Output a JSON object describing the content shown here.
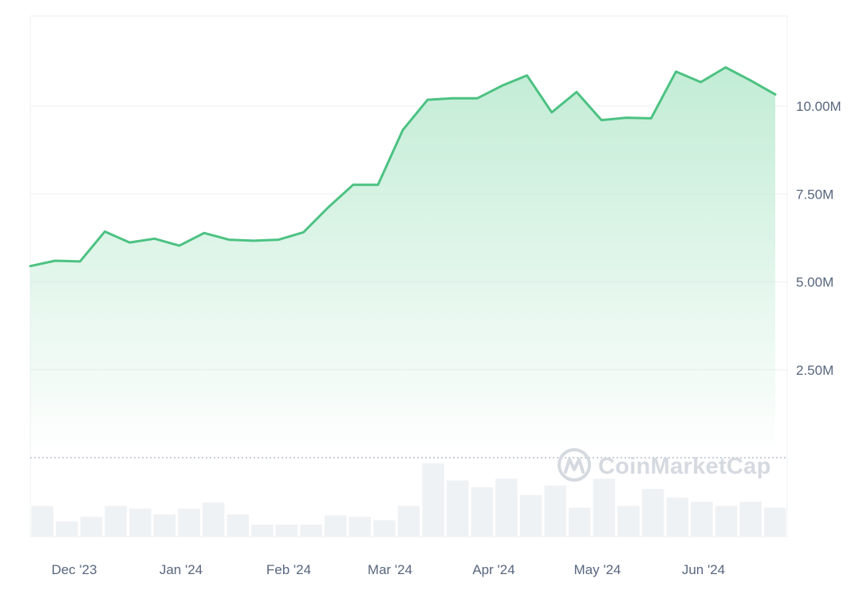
{
  "watermark": "CoinMarketCap",
  "colors": {
    "line": "#4cc282",
    "area_top": "#c2ecd5",
    "volume_bar": "#eff2f5",
    "gridline": "#eef0f3",
    "axis_text": "#58667e",
    "baseline": "#a6b0c3"
  },
  "chart_data": {
    "type": "area",
    "title": "",
    "xlabel": "",
    "ylabel": "",
    "ylim": [
      0,
      12.6
    ],
    "yunit": "M",
    "y_ticks": [
      {
        "value": 2.5,
        "label": "2.50M"
      },
      {
        "value": 5.0,
        "label": "5.00M"
      },
      {
        "value": 7.5,
        "label": "7.50M"
      },
      {
        "value": 10.0,
        "label": "10.00M"
      }
    ],
    "x_ticks": [
      "Dec '23",
      "Jan '24",
      "Feb '24",
      "Mar '24",
      "Apr '24",
      "May '24",
      "Jun '24"
    ],
    "grid": true,
    "legend": "none",
    "series": [
      {
        "values": [
          5.45,
          5.6,
          5.58,
          6.43,
          6.12,
          6.23,
          6.03,
          6.39,
          6.2,
          6.17,
          6.2,
          6.41,
          7.12,
          7.76,
          7.76,
          9.32,
          10.18,
          10.22,
          10.22,
          10.58,
          10.87,
          9.82,
          10.4,
          9.6,
          9.67,
          9.65,
          10.98,
          10.68,
          11.1,
          10.73,
          10.33
        ]
      }
    ],
    "volume": {
      "values": [
        0.9,
        0.45,
        0.58,
        0.9,
        0.82,
        0.65,
        0.82,
        1.0,
        0.65,
        0.35,
        0.35,
        0.35,
        0.62,
        0.58,
        0.48,
        0.9,
        2.15,
        1.65,
        1.45,
        1.7,
        1.22,
        1.5,
        0.85,
        1.7,
        0.9,
        1.4,
        1.15,
        1.02,
        0.9,
        1.02,
        0.85
      ]
    }
  }
}
